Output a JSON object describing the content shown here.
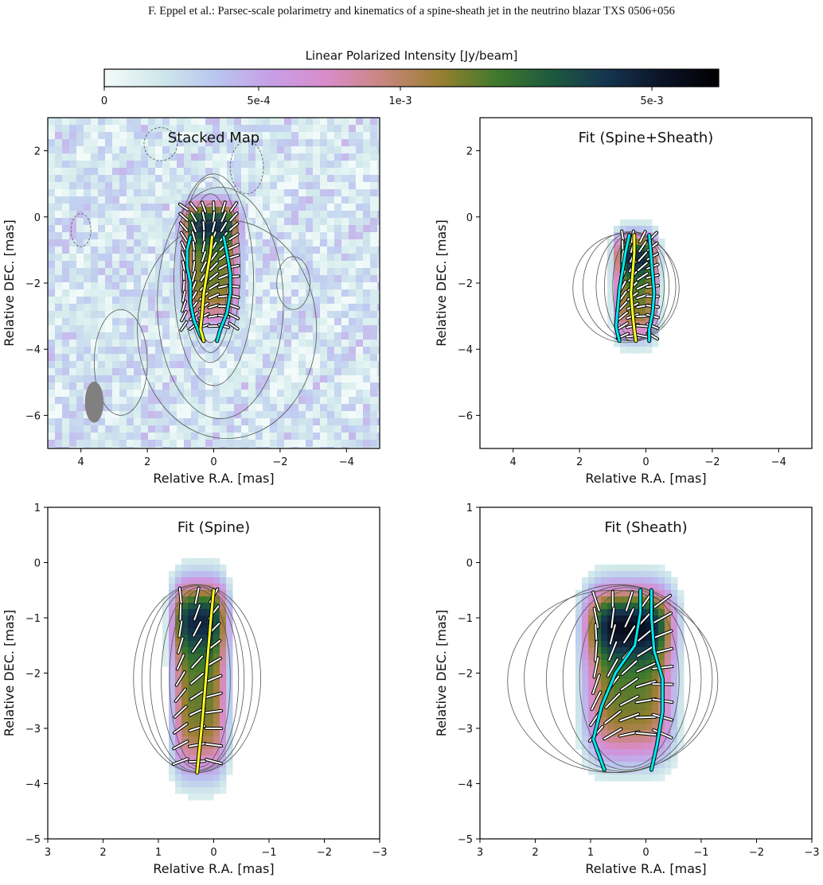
{
  "header": "F. Eppel et al.: Parsec-scale polarimetry and kinematics of a spine-sheath jet in the neutrino blazar TXS 0506+056",
  "colorbar": {
    "label": "Linear Polarized Intensity [Jy/beam]",
    "ticks": [
      "0",
      "5e-4",
      "1e-3",
      "5e-3"
    ],
    "colors": [
      "#f4fbfa",
      "#cfe8ea",
      "#b9c6ef",
      "#c79ee6",
      "#d98cc9",
      "#c8867e",
      "#9a7f30",
      "#407a2c",
      "#1d5a3e",
      "#15344f",
      "#0b1326",
      "#000000"
    ]
  },
  "colors": {
    "sheath_ridge": "#00e8f0",
    "spine_ridge": "#ffff22",
    "contour": "#555555",
    "beam": "#808080"
  },
  "chart_data": [
    {
      "type": "heatmap",
      "title": "Stacked Map",
      "xlabel": "Relative R.A. [mas]",
      "ylabel": "Relative DEC. [mas]",
      "xlim": [
        5,
        -5
      ],
      "ylim": [
        -7,
        3
      ],
      "xticks": [
        4,
        2,
        0,
        -2,
        -4
      ],
      "yticks": [
        2,
        0,
        -2,
        -4,
        -6
      ],
      "xtick_labels": [
        "4",
        "2",
        "0",
        "−2",
        "−4"
      ],
      "ytick_labels": [
        "2",
        "0",
        "−2",
        "−4",
        "−6"
      ],
      "background": "noise",
      "emission": {
        "ra": 0.1,
        "dec": -1.4,
        "ra_w": 0.9,
        "dec_h": 1.9,
        "peak": 0.92,
        "peak_dec": 0
      },
      "contours": [
        {
          "ra": 0.1,
          "dec": -1.7,
          "rx": 0.5,
          "ry": 2.1
        },
        {
          "ra": 0.1,
          "dec": -1.7,
          "rx": 0.7,
          "ry": 2.4
        },
        {
          "ra": 0.1,
          "dec": -1.6,
          "rx": 0.9,
          "ry": 2.8
        },
        {
          "ra": 0.0,
          "dec": -1.9,
          "rx": 1.2,
          "ry": 3.2
        },
        {
          "ra": -0.2,
          "dec": -2.6,
          "rx": 1.9,
          "ry": 3.5
        },
        {
          "ra": -0.4,
          "dec": -3.4,
          "rx": 2.7,
          "ry": 3.3
        },
        {
          "ra": -2.4,
          "dec": -2.0,
          "rx": 0.5,
          "ry": 0.8
        },
        {
          "ra": 2.8,
          "dec": -4.4,
          "rx": 0.8,
          "ry": 1.6
        }
      ],
      "neg_contours": [
        {
          "ra": 1.6,
          "dec": 2.2,
          "rx": 0.5,
          "ry": 0.5
        },
        {
          "ra": 4.0,
          "dec": -0.4,
          "rx": 0.3,
          "ry": 0.5
        },
        {
          "ra": -1.0,
          "dec": 1.5,
          "rx": 0.5,
          "ry": 0.8
        }
      ],
      "beam": {
        "ra": 3.6,
        "dec": -5.6,
        "rx": 0.28,
        "ry": 0.62
      },
      "evpa": {
        "ra": [
          -1.1,
          1.2
        ],
        "dec": [
          -4.6,
          1.2
        ],
        "step": 0.3,
        "length": 0.3
      },
      "ridges": [
        {
          "color": "cyan",
          "ra": [
            0.7,
            0.8,
            0.8,
            0.7,
            0.7,
            0.6,
            0.4,
            0.3
          ],
          "dec": [
            -0.6,
            -1.0,
            -1.5,
            -2.0,
            -2.6,
            -3.1,
            -3.6,
            -3.75
          ]
        },
        {
          "color": "cyan",
          "ra": [
            -0.3,
            -0.4,
            -0.5,
            -0.5,
            -0.4,
            -0.2,
            -0.1
          ],
          "dec": [
            -0.6,
            -1.1,
            -1.7,
            -2.3,
            -2.9,
            -3.4,
            -3.75
          ]
        },
        {
          "color": "yellow",
          "ra": [
            0.05,
            0.1,
            0.2,
            0.3,
            0.35,
            0.4,
            0.3
          ],
          "dec": [
            -0.6,
            -1.1,
            -1.7,
            -2.3,
            -2.9,
            -3.4,
            -3.75
          ]
        }
      ]
    },
    {
      "type": "heatmap",
      "title": "Fit (Spine+Sheath)",
      "xlabel": "Relative R.A. [mas]",
      "ylabel": "Relative DEC. [mas]",
      "xlim": [
        5,
        -5
      ],
      "ylim": [
        -7,
        3
      ],
      "xticks": [
        4,
        2,
        0,
        -2,
        -4
      ],
      "yticks": [
        2,
        0,
        -2,
        -4,
        -6
      ],
      "xtick_labels": [
        "4",
        "2",
        "0",
        "−2",
        "−4"
      ],
      "ytick_labels": [
        "2",
        "0",
        "−2",
        "−4",
        "−6"
      ],
      "background": "none",
      "emission": {
        "ra": 0.3,
        "dec": -2.1,
        "ra_w": 0.65,
        "dec_h": 1.6,
        "peak": 0.8,
        "peak_dec": -1.0
      },
      "contours": [
        {
          "ra": 0.3,
          "dec": -2.1,
          "rx": 0.7,
          "ry": 1.6
        },
        {
          "ra": 0.35,
          "dec": -2.1,
          "rx": 0.9,
          "ry": 1.65
        },
        {
          "ra": 0.4,
          "dec": -2.1,
          "rx": 1.1,
          "ry": 1.65
        },
        {
          "ra": 0.5,
          "dec": -2.1,
          "rx": 1.4,
          "ry": 1.65
        },
        {
          "ra": 0.6,
          "dec": -2.15,
          "rx": 1.6,
          "ry": 1.65
        }
      ],
      "neg_contours": [],
      "beam": null,
      "evpa": {
        "ra": [
          -0.8,
          1.3
        ],
        "dec": [
          -3.6,
          -0.6
        ],
        "step": 0.3,
        "length": 0.35
      },
      "ridges": [
        {
          "color": "cyan",
          "ra": [
            0.5,
            0.6,
            0.7,
            0.8,
            0.85,
            0.9,
            0.8
          ],
          "dec": [
            -0.55,
            -1.0,
            -1.6,
            -2.2,
            -2.8,
            -3.3,
            -3.75
          ]
        },
        {
          "color": "cyan",
          "ra": [
            -0.1,
            -0.15,
            -0.2,
            -0.25,
            -0.2,
            -0.1,
            -0.1
          ],
          "dec": [
            -0.55,
            -1.1,
            -1.7,
            -2.3,
            -2.9,
            -3.4,
            -3.75
          ]
        },
        {
          "color": "yellow",
          "ra": [
            0.35,
            0.35,
            0.4,
            0.45,
            0.4,
            0.35,
            0.3
          ],
          "dec": [
            -0.55,
            -1.1,
            -1.7,
            -2.3,
            -2.9,
            -3.4,
            -3.75
          ]
        }
      ]
    },
    {
      "type": "heatmap",
      "title": "Fit (Spine)",
      "xlabel": "Relative R.A. [mas]",
      "ylabel": "Relative DEC. [mas]",
      "xlim": [
        3,
        -3
      ],
      "ylim": [
        -5,
        1
      ],
      "xticks": [
        3,
        2,
        1,
        0,
        -1,
        -2,
        -3
      ],
      "yticks": [
        1,
        0,
        -1,
        -2,
        -3,
        -4,
        -5
      ],
      "xtick_labels": [
        "3",
        "2",
        "1",
        "0",
        "−1",
        "−2",
        "−3"
      ],
      "ytick_labels": [
        "1",
        "0",
        "−1",
        "−2",
        "−3",
        "−4",
        "−5"
      ],
      "background": "none",
      "emission": {
        "ra": 0.25,
        "dec": -2.1,
        "ra_w": 0.5,
        "dec_h": 1.75,
        "peak": 0.95,
        "peak_dec": -0.8
      },
      "contours": [
        {
          "ra": 0.25,
          "dec": -2.1,
          "rx": 0.55,
          "ry": 1.6
        },
        {
          "ra": 0.25,
          "dec": -2.1,
          "rx": 0.7,
          "ry": 1.65
        },
        {
          "ra": 0.3,
          "dec": -2.1,
          "rx": 0.85,
          "ry": 1.68
        },
        {
          "ra": 0.3,
          "dec": -2.1,
          "rx": 1.0,
          "ry": 1.7
        },
        {
          "ra": 0.3,
          "dec": -2.1,
          "rx": 1.15,
          "ry": 1.7
        }
      ],
      "neg_contours": [],
      "beam": null,
      "evpa": {
        "ra": [
          -0.3,
          0.9
        ],
        "dec": [
          -3.6,
          -0.6
        ],
        "step": 0.3,
        "length": 0.28
      },
      "ridges": [
        {
          "color": "yellow",
          "ra": [
            0.0,
            0.05,
            0.1,
            0.15,
            0.2,
            0.25,
            0.3
          ],
          "dec": [
            -0.5,
            -1.0,
            -1.6,
            -2.2,
            -2.8,
            -3.3,
            -3.8
          ]
        }
      ]
    },
    {
      "type": "heatmap",
      "title": "Fit (Sheath)",
      "xlabel": "Relative R.A. [mas]",
      "ylabel": "Relative DEC. [mas]",
      "xlim": [
        3,
        -3
      ],
      "ylim": [
        -5,
        1
      ],
      "xticks": [
        3,
        2,
        1,
        0,
        -1,
        -2,
        -3
      ],
      "yticks": [
        1,
        0,
        -1,
        -2,
        -3,
        -4,
        -5
      ],
      "xtick_labels": [
        "3",
        "2",
        "1",
        "0",
        "−1",
        "−2",
        "−3"
      ],
      "ytick_labels": [
        "1",
        "0",
        "−1",
        "−2",
        "−3",
        "−4",
        "−5"
      ],
      "background": "none",
      "emission": {
        "ra": 0.3,
        "dec": -2.0,
        "ra_w": 0.8,
        "dec_h": 1.6,
        "peak": 0.95,
        "peak_dec": -1.0
      },
      "contours": [
        {
          "ra": 0.3,
          "dec": -2.1,
          "rx": 0.9,
          "ry": 1.6
        },
        {
          "ra": 0.35,
          "dec": -2.1,
          "rx": 1.15,
          "ry": 1.65
        },
        {
          "ra": 0.4,
          "dec": -2.1,
          "rx": 1.4,
          "ry": 1.68
        },
        {
          "ra": 0.5,
          "dec": -2.1,
          "rx": 1.7,
          "ry": 1.7
        },
        {
          "ra": 0.6,
          "dec": -2.15,
          "rx": 1.9,
          "ry": 1.65
        }
      ],
      "neg_contours": [],
      "beam": null,
      "evpa": {
        "ra": [
          -1.2,
          1.2
        ],
        "dec": [
          -3.3,
          -0.7
        ],
        "step": 0.3,
        "length": 0.35
      },
      "ridges": [
        {
          "color": "cyan",
          "ra": [
            0.1,
            0.1,
            0.2,
            0.55,
            0.8,
            0.95,
            0.75
          ],
          "dec": [
            -0.5,
            -0.9,
            -1.5,
            -2.0,
            -2.6,
            -3.2,
            -3.75
          ]
        },
        {
          "color": "cyan",
          "ra": [
            -0.1,
            -0.1,
            -0.15,
            -0.3,
            -0.3,
            -0.2,
            -0.1
          ],
          "dec": [
            -0.5,
            -1.0,
            -1.6,
            -2.1,
            -2.7,
            -3.3,
            -3.75
          ]
        }
      ]
    }
  ]
}
